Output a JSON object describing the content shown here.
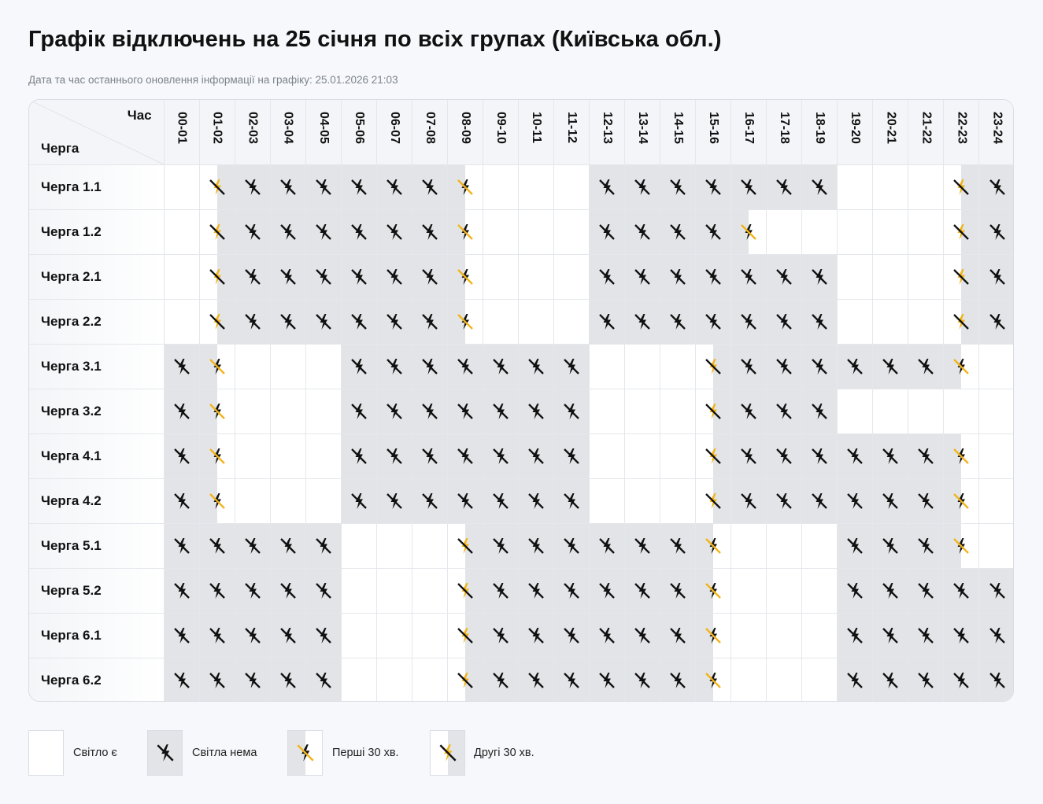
{
  "page": {
    "title": "Графік відключень на 25 січня по всіх групах (Київська обл.)",
    "subtitle": "Дата та час останнього оновлення інформації на графіку: 25.01.2026 21:03"
  },
  "table": {
    "corner_hour_label": "Час",
    "corner_queue_label": "Черга",
    "hours": [
      "00-01",
      "01-02",
      "02-03",
      "03-04",
      "04-05",
      "05-06",
      "06-07",
      "07-08",
      "08-09",
      "09-10",
      "10-11",
      "11-12",
      "12-13",
      "13-14",
      "14-15",
      "15-16",
      "16-17",
      "17-18",
      "18-19",
      "19-20",
      "20-21",
      "21-22",
      "22-23",
      "23-24"
    ],
    "status_codes": {
      "0": "Світло є",
      "1": "Світла нема",
      "2": "Перші 30 хв.",
      "3": "Другі 30 хв."
    },
    "rows": [
      {
        "label": "Черга 1.1",
        "cells": [
          0,
          3,
          1,
          1,
          1,
          1,
          1,
          1,
          2,
          0,
          0,
          0,
          1,
          1,
          1,
          1,
          1,
          1,
          1,
          0,
          0,
          0,
          3,
          1
        ]
      },
      {
        "label": "Черга 1.2",
        "cells": [
          0,
          3,
          1,
          1,
          1,
          1,
          1,
          1,
          2,
          0,
          0,
          0,
          1,
          1,
          1,
          1,
          2,
          0,
          0,
          0,
          0,
          0,
          3,
          1
        ]
      },
      {
        "label": "Черга 2.1",
        "cells": [
          0,
          3,
          1,
          1,
          1,
          1,
          1,
          1,
          2,
          0,
          0,
          0,
          1,
          1,
          1,
          1,
          1,
          1,
          1,
          0,
          0,
          0,
          3,
          1
        ]
      },
      {
        "label": "Черга 2.2",
        "cells": [
          0,
          3,
          1,
          1,
          1,
          1,
          1,
          1,
          2,
          0,
          0,
          0,
          1,
          1,
          1,
          1,
          1,
          1,
          1,
          0,
          0,
          0,
          3,
          1
        ]
      },
      {
        "label": "Черга 3.1",
        "cells": [
          1,
          2,
          0,
          0,
          0,
          1,
          1,
          1,
          1,
          1,
          1,
          1,
          0,
          0,
          0,
          3,
          1,
          1,
          1,
          1,
          1,
          1,
          2,
          0
        ]
      },
      {
        "label": "Черга 3.2",
        "cells": [
          1,
          2,
          0,
          0,
          0,
          1,
          1,
          1,
          1,
          1,
          1,
          1,
          0,
          0,
          0,
          3,
          1,
          1,
          1,
          0,
          0,
          0,
          0,
          0
        ]
      },
      {
        "label": "Черга 4.1",
        "cells": [
          1,
          2,
          0,
          0,
          0,
          1,
          1,
          1,
          1,
          1,
          1,
          1,
          0,
          0,
          0,
          3,
          1,
          1,
          1,
          1,
          1,
          1,
          2,
          0
        ]
      },
      {
        "label": "Черга 4.2",
        "cells": [
          1,
          2,
          0,
          0,
          0,
          1,
          1,
          1,
          1,
          1,
          1,
          1,
          0,
          0,
          0,
          3,
          1,
          1,
          1,
          1,
          1,
          1,
          2,
          0
        ]
      },
      {
        "label": "Черга 5.1",
        "cells": [
          1,
          1,
          1,
          1,
          1,
          0,
          0,
          0,
          3,
          1,
          1,
          1,
          1,
          1,
          1,
          2,
          0,
          0,
          0,
          1,
          1,
          1,
          2,
          0
        ]
      },
      {
        "label": "Черга 5.2",
        "cells": [
          1,
          1,
          1,
          1,
          1,
          0,
          0,
          0,
          3,
          1,
          1,
          1,
          1,
          1,
          1,
          2,
          0,
          0,
          0,
          1,
          1,
          1,
          1,
          1
        ]
      },
      {
        "label": "Черга 6.1",
        "cells": [
          1,
          1,
          1,
          1,
          1,
          0,
          0,
          0,
          3,
          1,
          1,
          1,
          1,
          1,
          1,
          2,
          0,
          0,
          0,
          1,
          1,
          1,
          1,
          1
        ]
      },
      {
        "label": "Черга 6.2",
        "cells": [
          1,
          1,
          1,
          1,
          1,
          0,
          0,
          0,
          3,
          1,
          1,
          1,
          1,
          1,
          1,
          2,
          0,
          0,
          0,
          1,
          1,
          1,
          1,
          1
        ]
      }
    ]
  },
  "legend": {
    "on": "Світло є",
    "off": "Світла нема",
    "first_half": "Перші 30 хв.",
    "second_half": "Другі 30 хв."
  },
  "colors": {
    "outage_fill": "#e3e4e7",
    "icon_black": "#111111",
    "icon_yellow": "#f2b316"
  }
}
